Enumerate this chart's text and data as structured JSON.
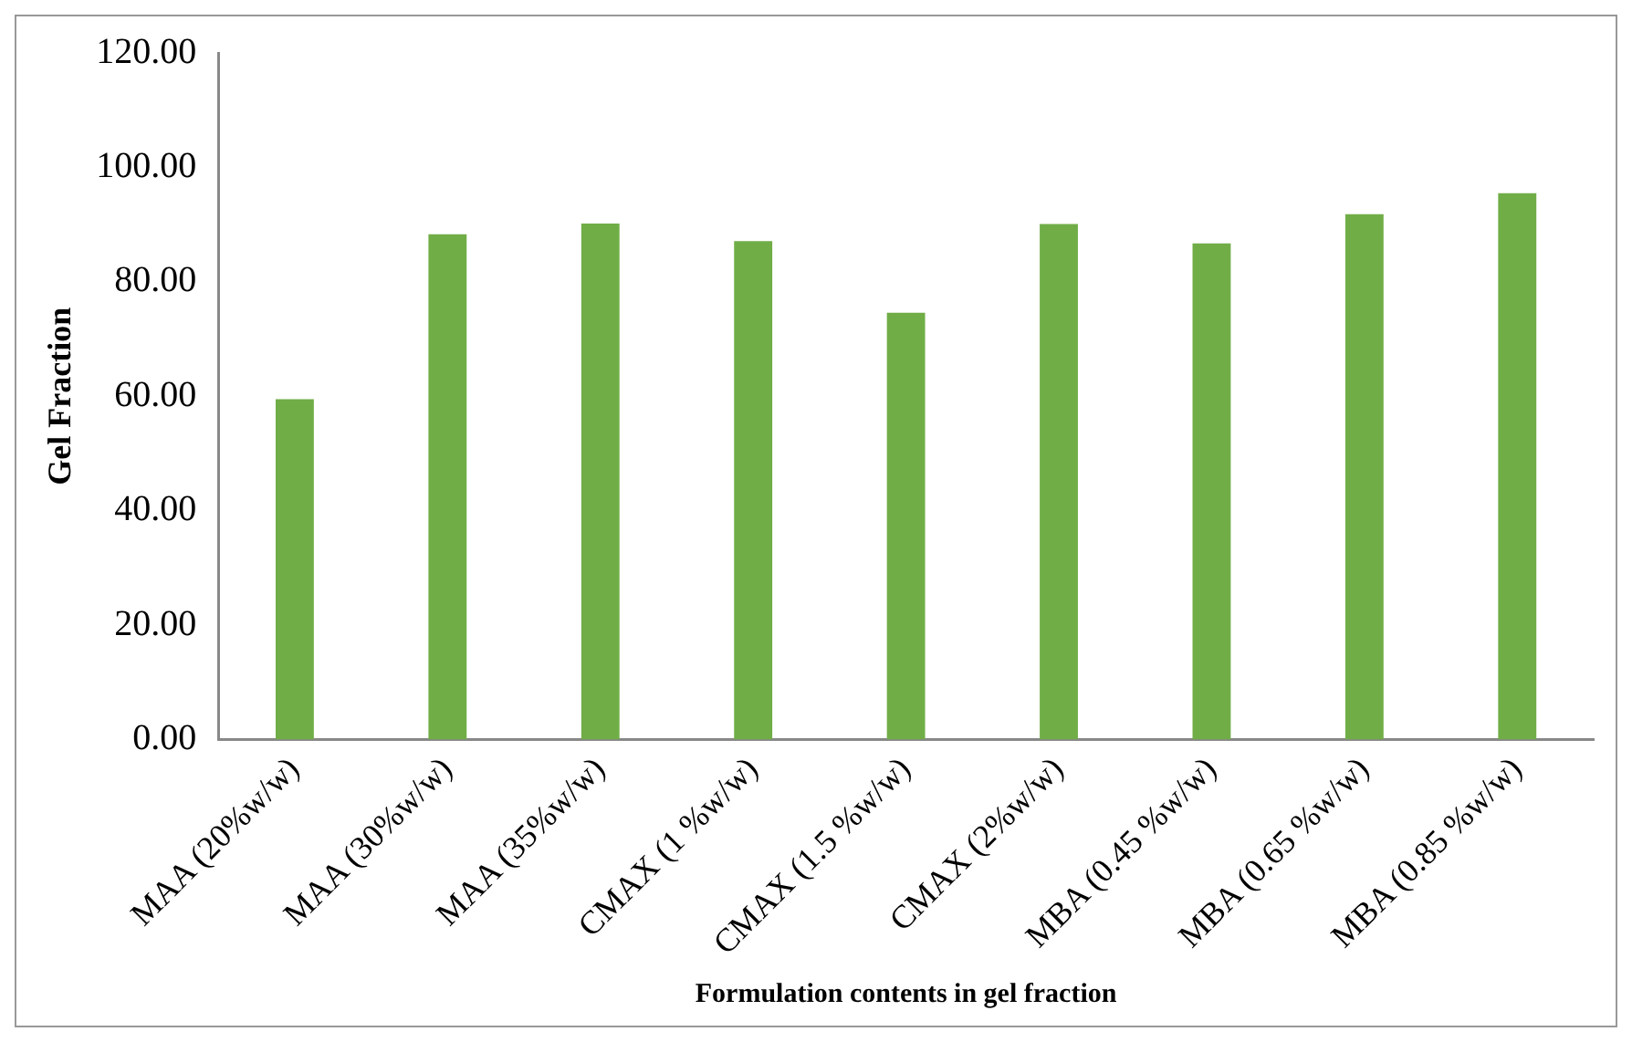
{
  "chart_data": {
    "type": "bar",
    "xlabel": "Formulation contents in gel fraction",
    "ylabel": "Gel Fraction",
    "categories": [
      "MAA (20%w/w)",
      "MAA (30%w/w)",
      "MAA (35%w/w)",
      "CMAX (1 %w/w)",
      "CMAX (1.5 %w/w)",
      "CMAX (2%w/w)",
      "MBA (0.45 %w/w)",
      "MBA (0.65 %w/w)",
      "MBA (0.85 %w/w)"
    ],
    "values": [
      59.5,
      88.3,
      90.2,
      87.1,
      74.6,
      90.1,
      86.7,
      91.8,
      95.5
    ],
    "color": "#70ad47",
    "ylim": [
      0,
      120
    ],
    "yticks": [
      {
        "value": 0,
        "label": "0.00"
      },
      {
        "value": 20,
        "label": "20.00"
      },
      {
        "value": 40,
        "label": "40.00"
      },
      {
        "value": 60,
        "label": "60.00"
      },
      {
        "value": 80,
        "label": "80.00"
      },
      {
        "value": 100,
        "label": "100.00"
      },
      {
        "value": 120,
        "label": "120.00"
      }
    ],
    "grid": false,
    "legend": false
  }
}
